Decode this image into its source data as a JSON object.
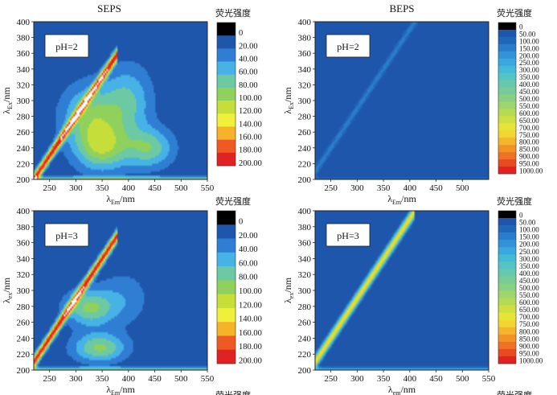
{
  "chart_data": [
    {
      "type": "heatmap",
      "title": "SEPS",
      "ph_label": "pH=2",
      "xlabel_main": "λ",
      "xlabel_sub": "Em",
      "xlabel_unit": "/nm",
      "ylabel_main": "λ",
      "ylabel_sub": "Ex",
      "ylabel_unit": "/nm",
      "xlim": [
        220,
        550
      ],
      "ylim": [
        200,
        400
      ],
      "x_ticks": [
        250,
        300,
        350,
        400,
        450,
        500,
        550
      ],
      "y_ticks": [
        200,
        220,
        240,
        260,
        280,
        300,
        320,
        340,
        360,
        380,
        400
      ],
      "legend_title": "荧光强度",
      "legend_levels": [
        "0",
        "20.00",
        "40.00",
        "60.00",
        "80.00",
        "100.00",
        "120.00",
        "140.00",
        "160.00",
        "180.00",
        "200.00"
      ],
      "legend_colors": [
        "#000000",
        "#1d56aa",
        "#2f7ed4",
        "#46b2e6",
        "#6cc9a3",
        "#8fd15c",
        "#c6de3a",
        "#f0ef3a",
        "#f6b32a",
        "#ee5a24",
        "#e02222"
      ],
      "colorscale_max": 200,
      "features": [
        {
          "kind": "scatter_band",
          "ex_offset": -20,
          "em_range": [
            220,
            380
          ],
          "peak": 190
        },
        {
          "kind": "scatter_band",
          "ex_offset": 200,
          "em_range": [
            400,
            550
          ],
          "peak": 190
        },
        {
          "kind": "baseline",
          "ex": 202,
          "peak": 80
        },
        {
          "kind": "peak",
          "em": 330,
          "ex": 280,
          "em_spread": 55,
          "ex_spread": 40,
          "value": 75
        },
        {
          "kind": "peak",
          "em": 350,
          "ex": 240,
          "em_spread": 50,
          "ex_spread": 30,
          "value": 80
        },
        {
          "kind": "peak",
          "em": 400,
          "ex": 300,
          "em_spread": 45,
          "ex_spread": 45,
          "value": 55
        },
        {
          "kind": "peak",
          "em": 440,
          "ex": 240,
          "em_spread": 45,
          "ex_spread": 25,
          "value": 70
        }
      ]
    },
    {
      "type": "heatmap",
      "title": "BEPS",
      "ph_label": "pH=2",
      "xlabel_main": "λ",
      "xlabel_sub": "Em",
      "xlabel_unit": "/nm",
      "ylabel_main": "λ",
      "ylabel_sub": "Ex",
      "ylabel_unit": "/nm",
      "xlim": [
        220,
        550
      ],
      "ylim": [
        200,
        400
      ],
      "x_ticks": [
        250,
        300,
        350,
        400,
        450,
        500
      ],
      "y_ticks": [
        200,
        220,
        240,
        260,
        280,
        300,
        320,
        340,
        360,
        380,
        400
      ],
      "legend_title": "荧光强度",
      "legend_levels": [
        "0",
        "50.00",
        "100.00",
        "150.00",
        "200.00",
        "250.00",
        "300.00",
        "350.00",
        "400.00",
        "450.00",
        "500.00",
        "550.00",
        "600.00",
        "650.00",
        "700.00",
        "750.00",
        "800.00",
        "850.00",
        "900.00",
        "950.00",
        "1000.00"
      ],
      "legend_colors": [
        "#000000",
        "#1d56aa",
        "#2167b9",
        "#2a7dcc",
        "#3393d8",
        "#3aa8e0",
        "#44bad7",
        "#55c4c4",
        "#66c8ad",
        "#77cc98",
        "#88d083",
        "#9fd56c",
        "#b7da56",
        "#cfdf42",
        "#e6e436",
        "#f1d532",
        "#f4b52d",
        "#f29328",
        "#ee7124",
        "#e84b22",
        "#e02222"
      ],
      "colorscale_max": 1000,
      "features": [
        {
          "kind": "scatter_band",
          "ex_offset": -10,
          "em_range": [
            220,
            420
          ],
          "peak": 120
        },
        {
          "kind": "scatter_band",
          "ex_offset": 200,
          "em_range": [
            400,
            550
          ],
          "peak": 100
        },
        {
          "kind": "baseline",
          "ex": 202,
          "peak": 90
        }
      ]
    },
    {
      "type": "heatmap",
      "title": "",
      "ph_label": "pH=3",
      "xlabel_main": "λ",
      "xlabel_sub": "Em",
      "xlabel_unit": "/nm",
      "ylabel_main": "λ",
      "ylabel_sub": "ex",
      "ylabel_unit": "/nm",
      "xlim": [
        220,
        550
      ],
      "ylim": [
        200,
        400
      ],
      "x_ticks": [
        250,
        300,
        350,
        400,
        450,
        500,
        550
      ],
      "y_ticks": [
        200,
        220,
        240,
        260,
        280,
        300,
        320,
        340,
        360,
        380,
        400
      ],
      "legend_title": "荧光强度",
      "legend_levels": [
        "0",
        "20.00",
        "40.00",
        "60.00",
        "80.00",
        "100.00",
        "120.00",
        "140.00",
        "160.00",
        "180.00",
        "200.00"
      ],
      "legend_colors": [
        "#000000",
        "#1d56aa",
        "#2f7ed4",
        "#46b2e6",
        "#6cc9a3",
        "#8fd15c",
        "#c6de3a",
        "#f0ef3a",
        "#f6b32a",
        "#ee5a24",
        "#e02222"
      ],
      "colorscale_max": 200,
      "features": [
        {
          "kind": "scatter_band",
          "ex_offset": -10,
          "em_range": [
            220,
            380
          ],
          "peak": 190
        },
        {
          "kind": "scatter_band",
          "ex_offset": 200,
          "em_range": [
            400,
            550
          ],
          "peak": 190
        },
        {
          "kind": "baseline",
          "ex": 202,
          "peak": 80
        },
        {
          "kind": "peak",
          "em": 325,
          "ex": 278,
          "em_spread": 45,
          "ex_spread": 22,
          "value": 78
        },
        {
          "kind": "peak",
          "em": 345,
          "ex": 228,
          "em_spread": 50,
          "ex_spread": 18,
          "value": 80
        },
        {
          "kind": "peak",
          "em": 390,
          "ex": 290,
          "em_spread": 50,
          "ex_spread": 35,
          "value": 30
        }
      ]
    },
    {
      "type": "heatmap",
      "title": "",
      "ph_label": "pH=3",
      "xlabel_main": "λ",
      "xlabel_sub": "em",
      "xlabel_unit": "/nm",
      "ylabel_main": "λ",
      "ylabel_sub": "ex",
      "ylabel_unit": "/nm",
      "xlim": [
        220,
        550
      ],
      "ylim": [
        200,
        400
      ],
      "x_ticks": [
        250,
        300,
        350,
        400,
        450,
        500,
        550
      ],
      "y_ticks": [
        200,
        220,
        240,
        260,
        280,
        300,
        320,
        340,
        360,
        380,
        400
      ],
      "legend_title": "荧光强度",
      "legend_levels": [
        "0",
        "50.00",
        "100.00",
        "150.00",
        "200.00",
        "250.00",
        "300.00",
        "350.00",
        "400.00",
        "450.00",
        "500.00",
        "550.00",
        "600.00",
        "650.00",
        "700.00",
        "750.00",
        "800.00",
        "850.00",
        "900.00",
        "950.00",
        "1000.00"
      ],
      "legend_colors": [
        "#000000",
        "#1d56aa",
        "#2167b9",
        "#2a7dcc",
        "#3393d8",
        "#3aa8e0",
        "#44bad7",
        "#55c4c4",
        "#66c8ad",
        "#77cc98",
        "#88d083",
        "#9fd56c",
        "#b7da56",
        "#cfdf42",
        "#e6e436",
        "#f1d532",
        "#f4b52d",
        "#f29328",
        "#ee7124",
        "#e84b22",
        "#e02222"
      ],
      "colorscale_max": 1000,
      "features": [
        {
          "kind": "scatter_band",
          "ex_offset": -10,
          "em_range": [
            220,
            410
          ],
          "peak": 720
        },
        {
          "kind": "scatter_band",
          "ex_offset": 200,
          "em_range": [
            420,
            550
          ],
          "peak": 260
        },
        {
          "kind": "baseline",
          "ex": 202,
          "peak": 260
        }
      ]
    }
  ],
  "cropped_footer": [
    "荧光强度",
    "荧光强度"
  ]
}
